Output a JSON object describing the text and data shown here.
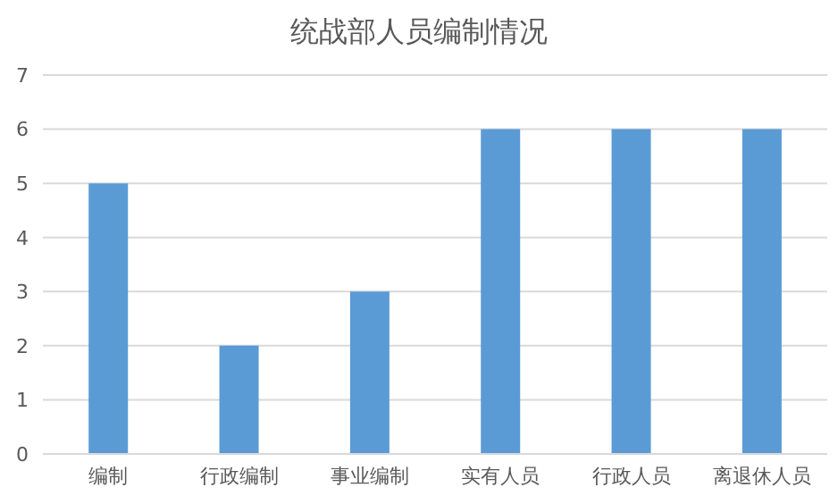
{
  "chart_data": {
    "type": "bar",
    "title": "统战部人员编制情况",
    "categories": [
      "编制",
      "行政编制",
      "事业编制",
      "实有人员",
      "行政人员",
      "离退休人员"
    ],
    "values": [
      5,
      2,
      3,
      6,
      6,
      6
    ],
    "color": "#5b9bd5",
    "ylim": [
      0,
      7
    ],
    "yticks": [
      0,
      1,
      2,
      3,
      4,
      5,
      6,
      7
    ],
    "grid": "y"
  }
}
